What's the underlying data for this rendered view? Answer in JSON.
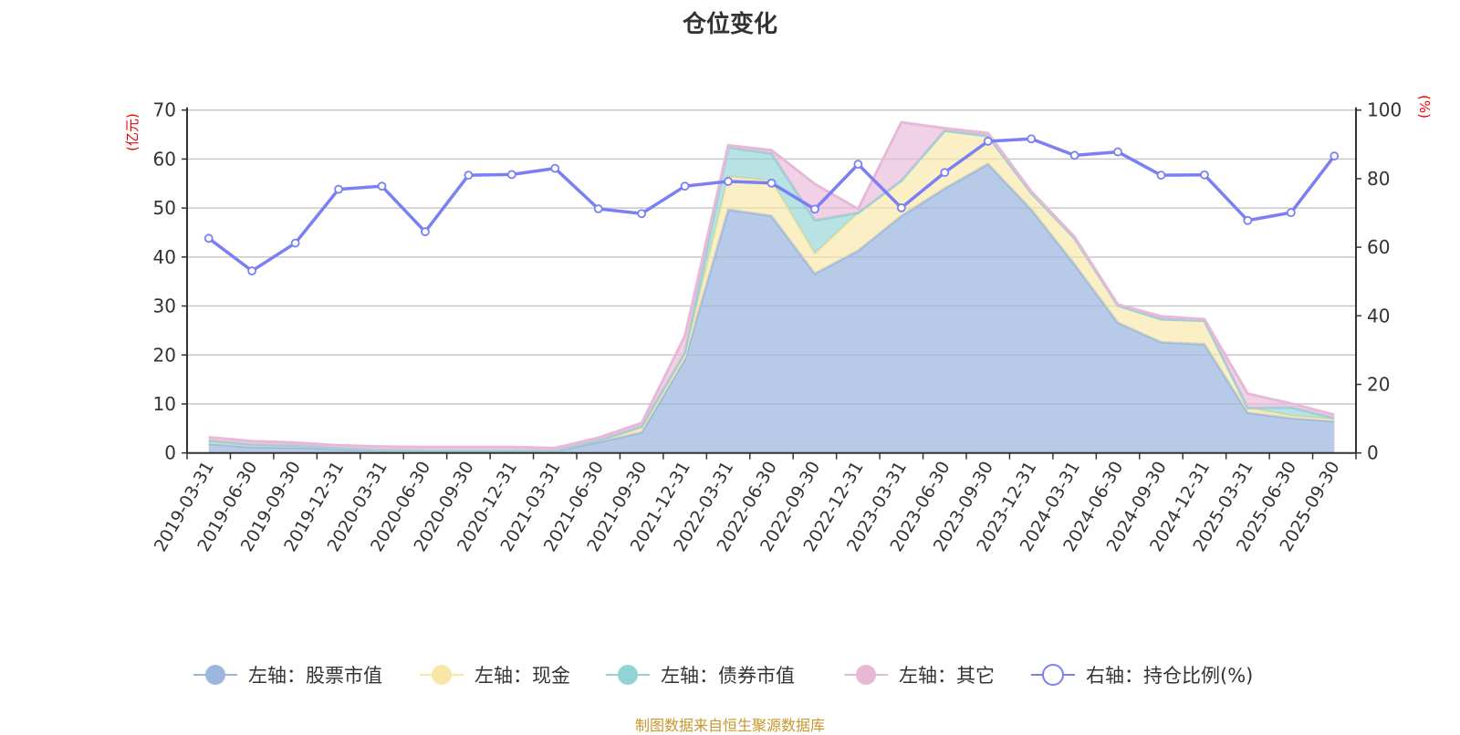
{
  "chart_data": {
    "type": "area",
    "title": "仓位变化",
    "stacked": true,
    "categories": [
      "2019-03-31",
      "2019-06-30",
      "2019-09-30",
      "2019-12-31",
      "2020-03-31",
      "2020-06-30",
      "2020-09-30",
      "2020-12-31",
      "2021-03-31",
      "2021-06-30",
      "2021-09-30",
      "2021-12-31",
      "2022-03-31",
      "2022-06-30",
      "2022-09-30",
      "2022-12-31",
      "2023-03-31",
      "2023-06-30",
      "2023-09-30",
      "2023-12-31",
      "2024-03-31",
      "2024-06-30",
      "2024-09-30",
      "2024-12-31",
      "2025-03-31",
      "2025-06-30",
      "2025-09-30"
    ],
    "left_axis": {
      "label": "(亿元)",
      "min": 0,
      "max": 70,
      "ticks": [
        0,
        10,
        20,
        30,
        40,
        50,
        60,
        70
      ]
    },
    "right_axis": {
      "label": "(%)",
      "min": 0,
      "max": 100,
      "ticks": [
        0,
        20,
        40,
        60,
        80,
        100
      ]
    },
    "grid": true,
    "legend_position": "bottom",
    "series": [
      {
        "name": "左轴：股票市值",
        "axis": "left",
        "kind": "area",
        "color": "#9bb7e0",
        "values": [
          1.9,
          1.2,
          1.1,
          0.75,
          0.5,
          0.4,
          0.4,
          0.4,
          0.3,
          2.2,
          4.2,
          19.2,
          49.7,
          48.4,
          36.6,
          41.3,
          48.4,
          54.0,
          59.0,
          49.7,
          38.5,
          26.6,
          22.6,
          22.2,
          8.2,
          7.1,
          6.5
        ]
      },
      {
        "name": "左轴：现金",
        "axis": "left",
        "kind": "area",
        "color": "#f7e6a6",
        "values": [
          0.6,
          0.5,
          0.4,
          0.2,
          0.1,
          0.1,
          0.1,
          0.1,
          0.1,
          0.3,
          0.9,
          0.7,
          6.7,
          7.2,
          4.1,
          7.7,
          7.2,
          11.8,
          5.7,
          3.4,
          5.3,
          3.5,
          4.7,
          4.8,
          1.0,
          0.5,
          0.3
        ]
      },
      {
        "name": "左轴：债券市值",
        "axis": "left",
        "kind": "area",
        "color": "#92d3d5",
        "values": [
          0,
          0,
          0,
          0,
          0,
          0,
          0,
          0,
          0,
          0,
          0.3,
          0.6,
          6.0,
          5.5,
          6.8,
          0,
          0,
          0,
          0,
          0,
          0,
          0,
          0,
          0,
          0,
          1.7,
          0.3
        ]
      },
      {
        "name": "左轴：其它",
        "axis": "left",
        "kind": "area",
        "color": "#e8b8d8",
        "values": [
          0.7,
          0.7,
          0.6,
          0.6,
          0.7,
          0.7,
          0.7,
          0.7,
          0.6,
          0.6,
          0.7,
          3.4,
          0.4,
          0.7,
          7.4,
          0.8,
          11.9,
          0.5,
          0.6,
          0.3,
          0.3,
          0.2,
          0.6,
          0.3,
          2.9,
          0.8,
          0.7
        ]
      },
      {
        "name": "右轴：持仓比例(%)",
        "axis": "right",
        "kind": "line",
        "color": "#7b7ff5",
        "values": [
          62.6,
          53.1,
          61.2,
          76.9,
          77.8,
          64.5,
          81.0,
          81.2,
          83.0,
          71.2,
          69.8,
          77.8,
          79.2,
          78.7,
          71.1,
          84.2,
          71.5,
          81.8,
          90.9,
          91.6,
          86.8,
          87.8,
          81.0,
          81.1,
          67.8,
          70.1,
          86.6
        ]
      }
    ]
  },
  "footer": "制图数据来自恒生聚源数据库"
}
